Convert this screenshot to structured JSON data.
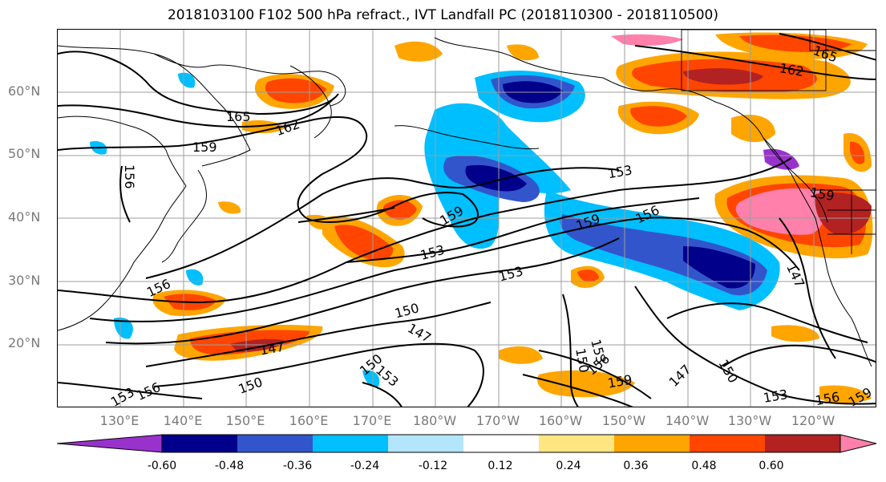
{
  "title": "2018103100 F102 500 hPa refract., IVT Landfall PC (2018110300 - 2018110500)",
  "lat_ticks": [
    "60°N",
    "50°N",
    "40°N",
    "30°N",
    "20°N"
  ],
  "lon_ticks": [
    "130°E",
    "140°E",
    "150°E",
    "160°E",
    "170°E",
    "180°W",
    "170°W",
    "160°W",
    "150°W",
    "140°W",
    "130°W",
    "120°W"
  ],
  "colorbar": {
    "labels": [
      "-0.60",
      "-0.48",
      "-0.36",
      "-0.24",
      "-0.12",
      "0.12",
      "0.24",
      "0.36",
      "0.48",
      "0.60"
    ],
    "colors": [
      "#9932cc",
      "#00008b",
      "#3355cc",
      "#00bfff",
      "#b3e5fc",
      "#ffffff",
      "#ffe680",
      "#ffa500",
      "#ff4500",
      "#b22222",
      "#ff80aa"
    ],
    "extend": "both"
  },
  "contour_labels": [
    "165",
    "162",
    "159",
    "156",
    "153",
    "150",
    "147"
  ],
  "map_data": {
    "projection": "cylindrical",
    "extent_lon_deg_east": [
      123,
      248
    ],
    "extent_lat": [
      10,
      70
    ],
    "shading": "500 hPa refractivity IVT landfall PC correlation",
    "contours": "500 hPa refractivity",
    "contour_interval": 3,
    "gridlines": true,
    "coastlines": true,
    "borders": true
  }
}
